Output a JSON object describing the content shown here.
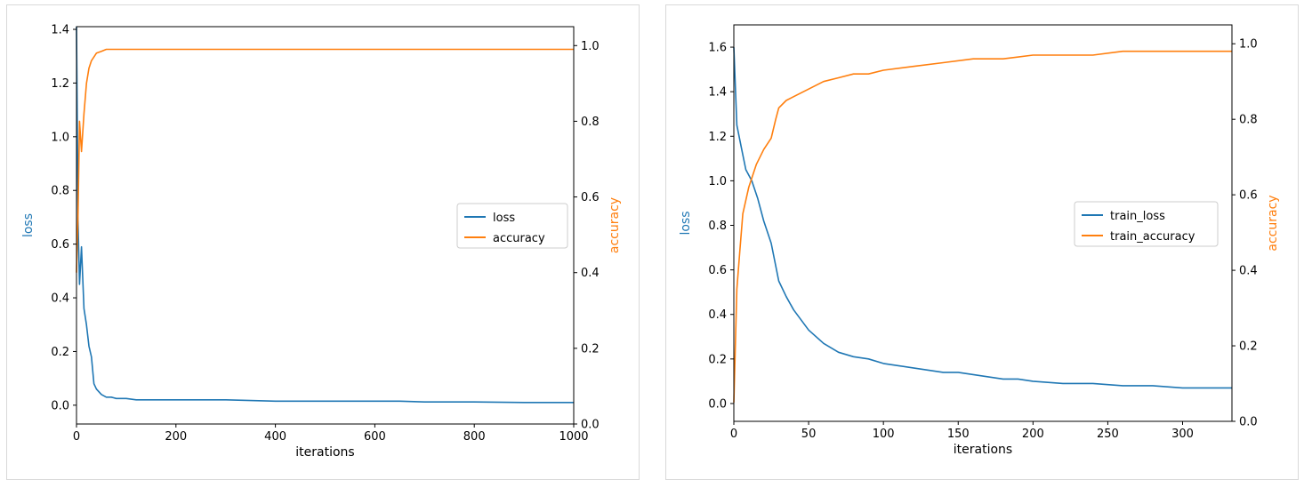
{
  "chart_data": [
    {
      "type": "line",
      "xlabel": "iterations",
      "ylabel_left": "loss",
      "ylabel_right": "accuracy",
      "xlim": [
        0,
        1000
      ],
      "ylim_left": [
        -0.07,
        1.41
      ],
      "ylim_right": [
        0,
        1.05
      ],
      "xticks": [
        0,
        200,
        400,
        600,
        800,
        1000
      ],
      "yticks_left": [
        0.0,
        0.2,
        0.4,
        0.6,
        0.8,
        1.0,
        1.2,
        1.4
      ],
      "yticks_right": [
        0.0,
        0.2,
        0.4,
        0.6,
        0.8,
        1.0
      ],
      "legend_position": "center-right",
      "grid": false,
      "series": [
        {
          "name": "loss",
          "axis": "left",
          "color": "#1f77b4",
          "x": [
            0,
            3,
            6,
            10,
            15,
            20,
            25,
            30,
            35,
            40,
            50,
            60,
            70,
            80,
            100,
            120,
            150,
            200,
            250,
            300,
            400,
            500,
            600,
            650,
            700,
            800,
            900,
            1000
          ],
          "values": [
            1.41,
            0.69,
            0.45,
            0.59,
            0.36,
            0.3,
            0.22,
            0.18,
            0.08,
            0.06,
            0.04,
            0.03,
            0.03,
            0.025,
            0.025,
            0.02,
            0.02,
            0.02,
            0.02,
            0.02,
            0.015,
            0.015,
            0.015,
            0.015,
            0.012,
            0.012,
            0.01,
            0.01
          ]
        },
        {
          "name": "accuracy",
          "axis": "right",
          "color": "#ff7f0e",
          "x": [
            0,
            3,
            6,
            10,
            15,
            20,
            25,
            30,
            35,
            40,
            50,
            60,
            100,
            200,
            300,
            400,
            500,
            600,
            700,
            800,
            900,
            1000
          ],
          "values": [
            0.4,
            0.55,
            0.8,
            0.72,
            0.82,
            0.9,
            0.94,
            0.96,
            0.97,
            0.98,
            0.985,
            0.99,
            0.99,
            0.99,
            0.99,
            0.99,
            0.99,
            0.99,
            0.99,
            0.99,
            0.99,
            0.99
          ]
        }
      ]
    },
    {
      "type": "line",
      "xlabel": "iterations",
      "ylabel_left": "loss",
      "ylabel_right": "accuracy",
      "xlim": [
        0,
        333
      ],
      "ylim_left": [
        -0.08,
        1.7
      ],
      "ylim_right": [
        0,
        1.05
      ],
      "xticks": [
        0,
        50,
        100,
        150,
        200,
        250,
        300
      ],
      "yticks_left": [
        0.0,
        0.2,
        0.4,
        0.6,
        0.8,
        1.0,
        1.2,
        1.4,
        1.6
      ],
      "yticks_right": [
        0.0,
        0.2,
        0.4,
        0.6,
        0.8,
        1.0
      ],
      "legend_position": "center-right",
      "grid": false,
      "series": [
        {
          "name": "train_loss",
          "axis": "left",
          "color": "#1f77b4",
          "x": [
            0,
            2,
            5,
            8,
            12,
            16,
            20,
            25,
            30,
            35,
            40,
            50,
            60,
            70,
            80,
            90,
            100,
            110,
            120,
            130,
            140,
            150,
            160,
            170,
            180,
            190,
            200,
            220,
            240,
            260,
            280,
            300,
            320,
            333
          ],
          "values": [
            1.6,
            1.25,
            1.15,
            1.05,
            1.0,
            0.92,
            0.82,
            0.72,
            0.55,
            0.48,
            0.42,
            0.33,
            0.27,
            0.23,
            0.21,
            0.2,
            0.18,
            0.17,
            0.16,
            0.15,
            0.14,
            0.14,
            0.13,
            0.12,
            0.11,
            0.11,
            0.1,
            0.09,
            0.09,
            0.08,
            0.08,
            0.07,
            0.07,
            0.07
          ]
        },
        {
          "name": "train_accuracy",
          "axis": "right",
          "color": "#ff7f0e",
          "x": [
            0,
            2,
            4,
            6,
            10,
            15,
            20,
            25,
            28,
            30,
            35,
            40,
            50,
            60,
            70,
            80,
            90,
            100,
            120,
            140,
            160,
            180,
            200,
            220,
            240,
            260,
            280,
            300,
            320,
            333
          ],
          "values": [
            0.05,
            0.35,
            0.45,
            0.55,
            0.62,
            0.68,
            0.72,
            0.75,
            0.8,
            0.83,
            0.85,
            0.86,
            0.88,
            0.9,
            0.91,
            0.92,
            0.92,
            0.93,
            0.94,
            0.95,
            0.96,
            0.96,
            0.97,
            0.97,
            0.97,
            0.98,
            0.98,
            0.98,
            0.98,
            0.98
          ]
        }
      ]
    }
  ]
}
